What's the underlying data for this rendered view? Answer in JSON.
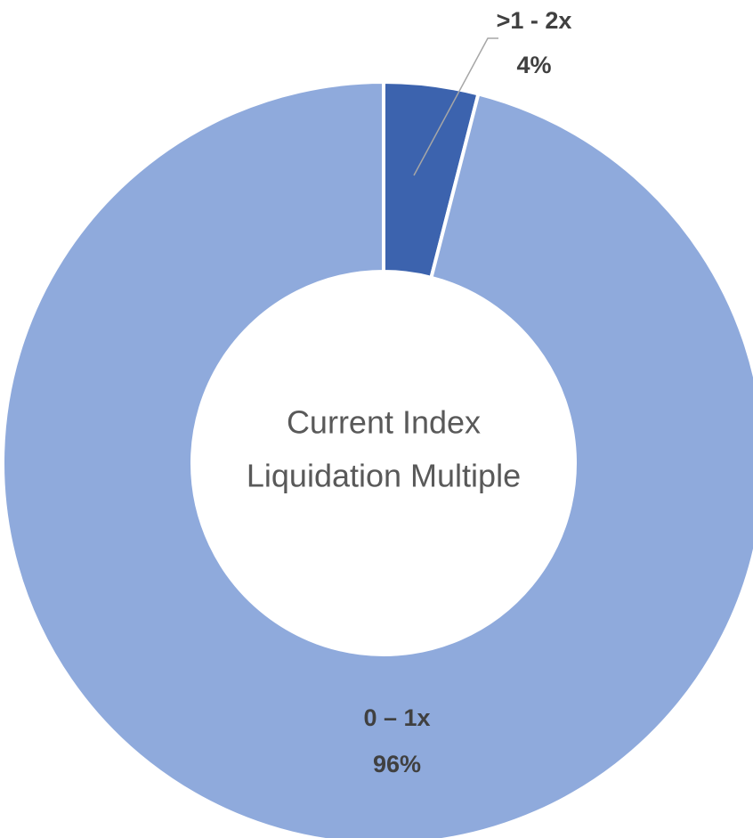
{
  "chart_data": {
    "type": "donut",
    "center_label": [
      "Current Index",
      "Liquidation Multiple"
    ],
    "categories": [
      ">1 - 2x",
      "0 – 1x"
    ],
    "values": [
      4,
      96
    ],
    "value_labels": [
      "4%",
      "96%"
    ],
    "colors": [
      "#3c63ae",
      "#8faadc"
    ]
  }
}
